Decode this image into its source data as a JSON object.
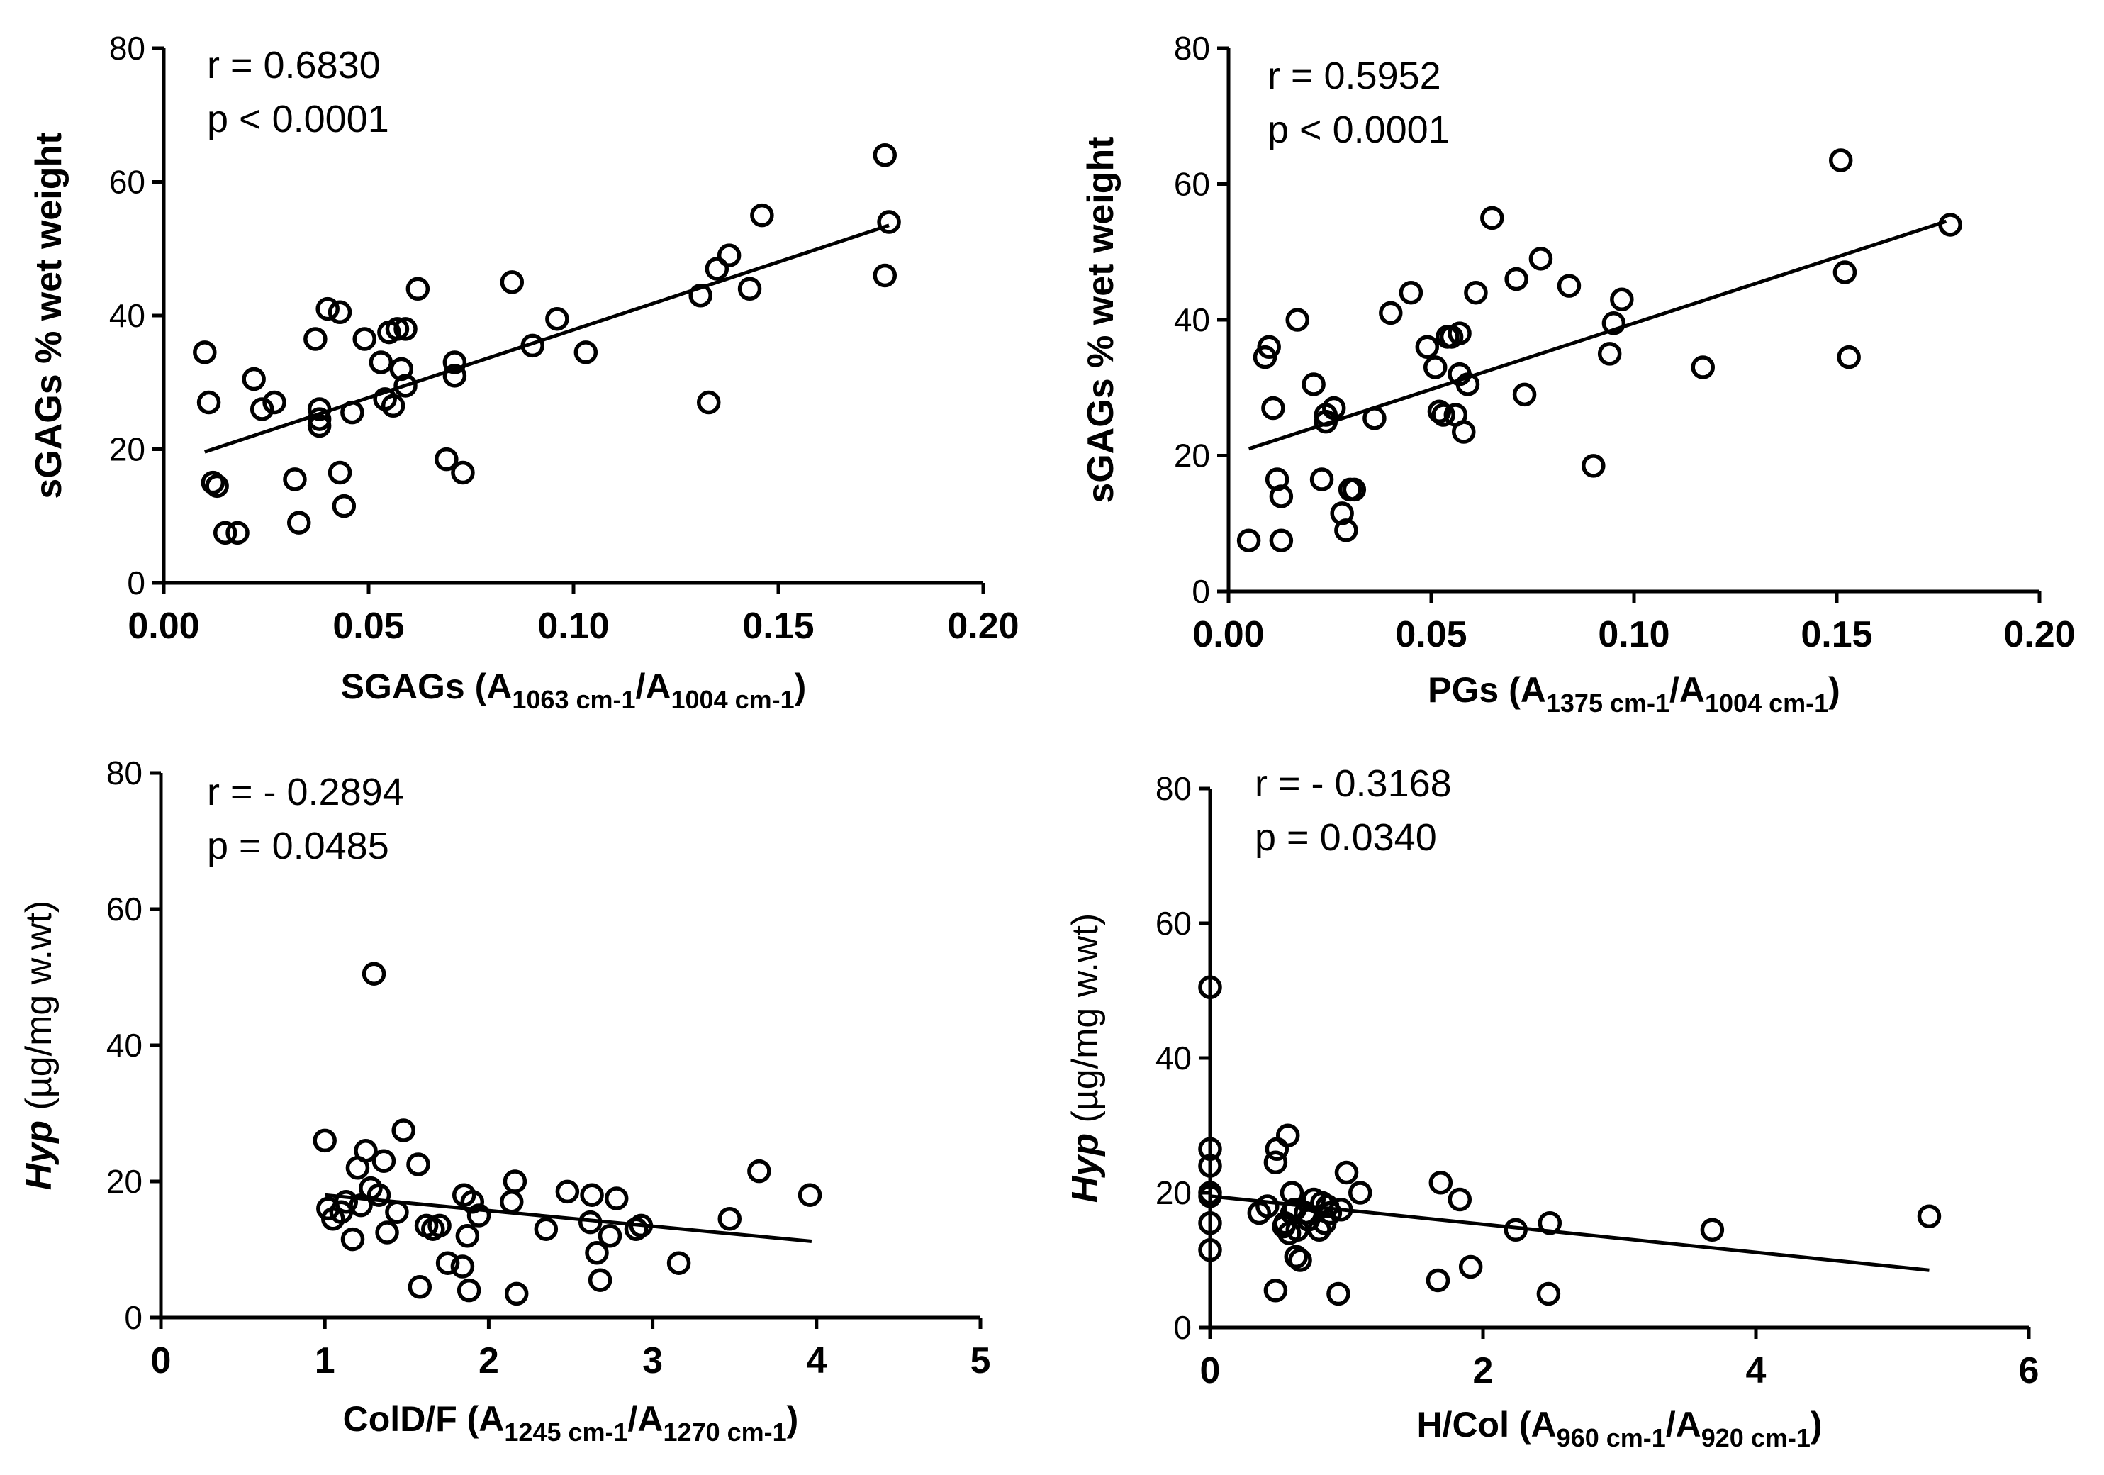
{
  "chart_data": [
    {
      "type": "scatter",
      "ylabel": "sGAGs % wet weight",
      "xlabel": {
        "main": "SGAGs (A",
        "sub1": "1063 cm-1",
        "mid": "/A",
        "sub2": "1004 cm-1",
        "end": ")"
      },
      "xlim": [
        0,
        0.2
      ],
      "ylim": [
        0,
        80
      ],
      "xticks": [
        0,
        0.05,
        0.1,
        0.15,
        0.2
      ],
      "xtick_labels": [
        "0.00",
        "0.05",
        "0.10",
        "0.15",
        "0.20"
      ],
      "yticks": [
        0,
        20,
        40,
        60,
        80
      ],
      "ytick_labels": [
        "0",
        "20",
        "40",
        "60",
        "80"
      ],
      "annotation": [
        "r = 0.6830",
        "p < 0.0001"
      ],
      "fit": {
        "x": [
          0.01,
          0.177
        ],
        "y": [
          19.6,
          53.5
        ]
      },
      "x": [
        0.01,
        0.011,
        0.012,
        0.013,
        0.015,
        0.018,
        0.022,
        0.024,
        0.027,
        0.032,
        0.033,
        0.037,
        0.038,
        0.038,
        0.038,
        0.04,
        0.043,
        0.043,
        0.044,
        0.046,
        0.049,
        0.053,
        0.054,
        0.055,
        0.056,
        0.057,
        0.058,
        0.059,
        0.059,
        0.062,
        0.069,
        0.071,
        0.071,
        0.073,
        0.085,
        0.09,
        0.096,
        0.103,
        0.131,
        0.133,
        0.135,
        0.138,
        0.143,
        0.146,
        0.176,
        0.176,
        0.177
      ],
      "y": [
        34.5,
        27.0,
        15.0,
        14.5,
        7.5,
        7.5,
        30.5,
        26.0,
        27.0,
        15.5,
        9.0,
        36.5,
        26.0,
        24.5,
        23.5,
        41.0,
        40.5,
        16.5,
        11.5,
        25.5,
        36.5,
        33.0,
        27.5,
        37.5,
        26.5,
        38.0,
        32.0,
        38.0,
        29.5,
        44.0,
        18.5,
        33.0,
        31.0,
        16.5,
        45.0,
        35.5,
        39.5,
        34.5,
        43.0,
        27.0,
        47.0,
        49.0,
        44.0,
        55.0,
        64.0,
        46.0,
        54.0
      ]
    },
    {
      "type": "scatter",
      "ylabel": "sGAGs % wet weight",
      "xlabel": {
        "main": "PGs (A",
        "sub1": "1375 cm-1",
        "mid": "/A",
        "sub2": "1004 cm-1",
        "end": ")"
      },
      "xlim": [
        0,
        0.2
      ],
      "ylim": [
        0,
        80
      ],
      "xticks": [
        0,
        0.05,
        0.1,
        0.15,
        0.2
      ],
      "xtick_labels": [
        "0.00",
        "0.05",
        "0.10",
        "0.15",
        "0.20"
      ],
      "yticks": [
        0,
        20,
        40,
        60,
        80
      ],
      "ytick_labels": [
        "0",
        "20",
        "40",
        "60",
        "80"
      ],
      "annotation": [
        "r = 0.5952",
        "p < 0.0001"
      ],
      "fit": {
        "x": [
          0.005,
          0.177
        ],
        "y": [
          21.0,
          54.5
        ]
      },
      "x": [
        0.005,
        0.009,
        0.01,
        0.011,
        0.012,
        0.013,
        0.013,
        0.017,
        0.021,
        0.023,
        0.024,
        0.024,
        0.026,
        0.028,
        0.029,
        0.03,
        0.031,
        0.036,
        0.04,
        0.045,
        0.049,
        0.051,
        0.052,
        0.053,
        0.054,
        0.055,
        0.056,
        0.057,
        0.057,
        0.058,
        0.059,
        0.061,
        0.065,
        0.071,
        0.073,
        0.077,
        0.084,
        0.09,
        0.094,
        0.095,
        0.097,
        0.117,
        0.151,
        0.152,
        0.153,
        0.178
      ],
      "y": [
        7.5,
        34.5,
        36.0,
        27.0,
        16.5,
        14.0,
        7.5,
        40.0,
        30.5,
        16.5,
        26.0,
        25.0,
        27.0,
        11.5,
        9.0,
        15.0,
        15.0,
        25.5,
        41.0,
        44.0,
        36.0,
        33.0,
        26.5,
        26.0,
        37.5,
        37.5,
        26.0,
        38.0,
        32.0,
        23.5,
        30.5,
        44.0,
        55.0,
        46.0,
        29.0,
        49.0,
        45.0,
        18.5,
        35.0,
        39.5,
        43.0,
        33.0,
        63.5,
        47.0,
        34.5,
        54.0
      ]
    },
    {
      "type": "scatter",
      "ylabel": {
        "italic": "Hyp",
        "rest": " (µg/mg w.wt)"
      },
      "xlabel": {
        "main": "ColD/F (A",
        "sub1": "1245 cm-1",
        "mid": "/A",
        "sub2": "1270 cm-1",
        "end": ")"
      },
      "xlim": [
        0,
        5
      ],
      "ylim": [
        0,
        80
      ],
      "xticks": [
        0,
        1,
        2,
        3,
        4,
        5
      ],
      "xtick_labels": [
        "0",
        "1",
        "2",
        "3",
        "4",
        "5"
      ],
      "yticks": [
        0,
        20,
        40,
        60,
        80
      ],
      "ytick_labels": [
        "0",
        "20",
        "40",
        "60",
        "80"
      ],
      "annotation": [
        "r = - 0.2894",
        "p = 0.0485"
      ],
      "fit": {
        "x": [
          1.0,
          3.97
        ],
        "y": [
          18.0,
          11.2
        ]
      },
      "x": [
        1.0,
        1.02,
        1.05,
        1.1,
        1.13,
        1.17,
        1.2,
        1.22,
        1.25,
        1.28,
        1.3,
        1.33,
        1.36,
        1.38,
        1.44,
        1.48,
        1.57,
        1.58,
        1.62,
        1.66,
        1.7,
        1.75,
        1.84,
        1.85,
        1.87,
        1.88,
        1.9,
        1.94,
        2.14,
        2.16,
        2.17,
        2.35,
        2.48,
        2.62,
        2.63,
        2.66,
        2.68,
        2.74,
        2.78,
        2.9,
        2.93,
        3.16,
        3.47,
        3.65,
        3.96
      ],
      "y": [
        26.0,
        16.0,
        14.5,
        15.5,
        17.0,
        11.5,
        22.0,
        16.5,
        24.5,
        19.0,
        50.5,
        18.0,
        23.0,
        12.5,
        15.5,
        27.5,
        22.5,
        4.5,
        13.5,
        13.0,
        13.5,
        8.0,
        7.5,
        18.0,
        12.0,
        4.0,
        17.0,
        15.0,
        17.0,
        20.0,
        3.5,
        13.0,
        18.5,
        14.0,
        18.0,
        9.5,
        5.5,
        12.0,
        17.5,
        13.0,
        13.5,
        8.0,
        14.5,
        21.5,
        18.0
      ]
    },
    {
      "type": "scatter",
      "ylabel": {
        "italic": "Hyp",
        "rest": " (µg/mg w.wt)"
      },
      "xlabel": {
        "main": "H/Col (A",
        "sub1": "960 cm-1",
        "mid": "/A",
        "sub2": "920 cm-1",
        "end": ")"
      },
      "xlim": [
        0,
        6
      ],
      "ylim": [
        0,
        80
      ],
      "xticks": [
        0,
        2,
        4,
        6
      ],
      "xtick_labels": [
        "0",
        "2",
        "4",
        "6"
      ],
      "yticks": [
        0,
        20,
        40,
        60,
        80
      ],
      "ytick_labels": [
        "0",
        "20",
        "40",
        "60",
        "80"
      ],
      "annotation": [
        "r = - 0.3168",
        "p = 0.0340"
      ],
      "fit": {
        "x": [
          0.0,
          5.27
        ],
        "y": [
          19.5,
          8.5
        ]
      },
      "x": [
        0.0,
        0.0,
        0.0,
        0.0,
        0.0,
        0.0,
        0.0,
        0.36,
        0.42,
        0.48,
        0.48,
        0.49,
        0.54,
        0.55,
        0.57,
        0.58,
        0.6,
        0.6,
        0.62,
        0.63,
        0.64,
        0.66,
        0.7,
        0.72,
        0.76,
        0.8,
        0.82,
        0.84,
        0.86,
        0.88,
        0.94,
        0.96,
        1.0,
        1.1,
        1.67,
        1.69,
        1.83,
        1.91,
        2.24,
        2.48,
        2.49,
        3.68,
        5.27
      ],
      "y": [
        50.5,
        26.5,
        24.0,
        20.0,
        19.5,
        15.5,
        11.5,
        17.0,
        18.0,
        5.5,
        24.5,
        26.5,
        15.0,
        15.5,
        28.5,
        14.0,
        17.0,
        20.0,
        17.5,
        10.5,
        14.5,
        10.0,
        17.0,
        16.0,
        19.0,
        14.5,
        18.5,
        15.5,
        18.0,
        17.0,
        5.0,
        17.5,
        23.0,
        20.0,
        7.0,
        21.5,
        19.0,
        9.0,
        14.5,
        5.0,
        15.5,
        14.5,
        16.5
      ]
    }
  ]
}
